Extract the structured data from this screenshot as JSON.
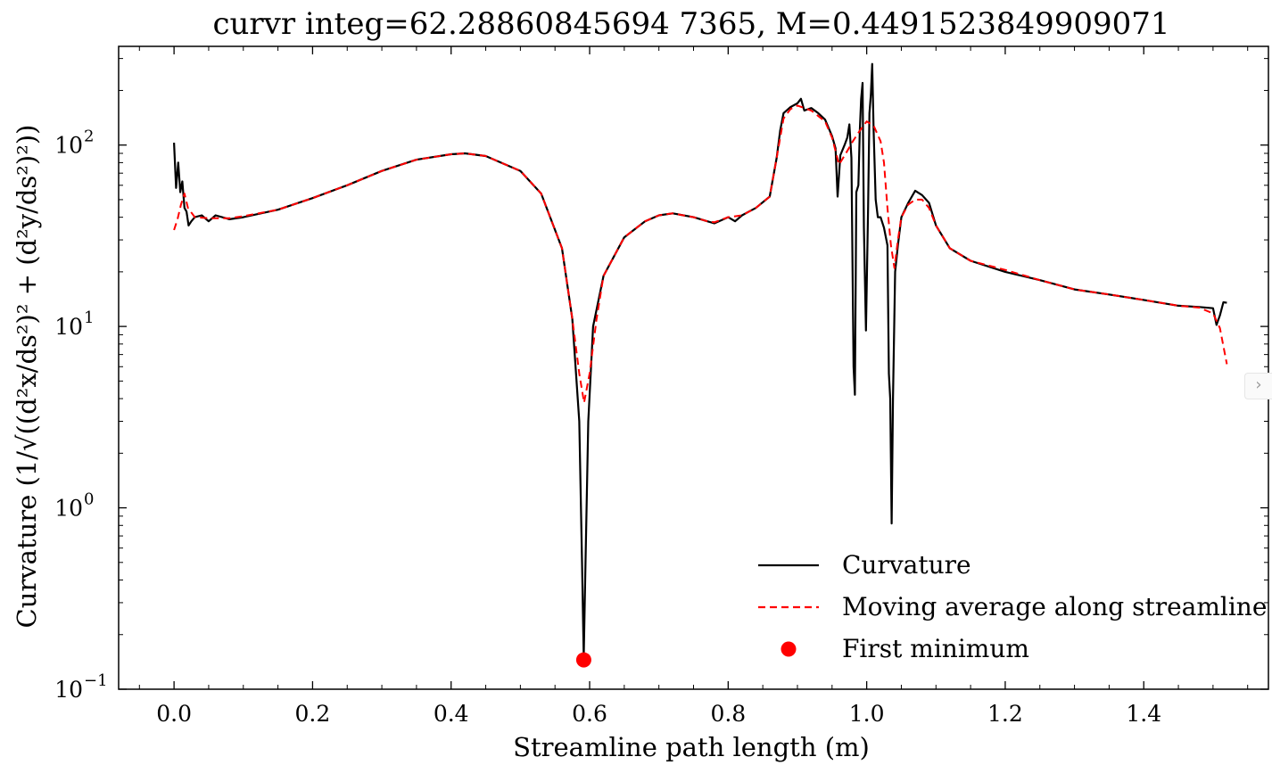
{
  "chart_data": {
    "type": "line",
    "title": "curvr integ=62.28860845694 7365, M=0.4491523849909071",
    "xlabel": "Streamline path length (m)",
    "ylabel": "Curvature (1/√((d²x/ds²)² + (d²y/ds²)²))",
    "yscale": "log",
    "xlim": [
      -0.08,
      1.58
    ],
    "ylim": [
      0.1,
      350
    ],
    "x_ticks": [
      0.0,
      0.2,
      0.4,
      0.6,
      0.8,
      1.0,
      1.2,
      1.4
    ],
    "x_tick_labels": [
      "0.0",
      "0.2",
      "0.4",
      "0.6",
      "0.8",
      "1.0",
      "1.2",
      "1.4"
    ],
    "y_ticks": [
      {
        "value": 0.1,
        "base": "10",
        "exp": "−1"
      },
      {
        "value": 1,
        "base": "10",
        "exp": "0"
      },
      {
        "value": 10,
        "base": "10",
        "exp": "1"
      },
      {
        "value": 100,
        "base": "10",
        "exp": "2"
      }
    ],
    "legend_position": "lower-right",
    "grid": false,
    "series": [
      {
        "name": "Curvature",
        "style": "solid",
        "color": "#000000",
        "points": [
          [
            0.0,
            103
          ],
          [
            0.003,
            58
          ],
          [
            0.006,
            80
          ],
          [
            0.009,
            55
          ],
          [
            0.012,
            63
          ],
          [
            0.015,
            45
          ],
          [
            0.018,
            43
          ],
          [
            0.021,
            36
          ],
          [
            0.025,
            38
          ],
          [
            0.03,
            40
          ],
          [
            0.04,
            41
          ],
          [
            0.05,
            38
          ],
          [
            0.06,
            41
          ],
          [
            0.08,
            39
          ],
          [
            0.1,
            40
          ],
          [
            0.15,
            44
          ],
          [
            0.2,
            51
          ],
          [
            0.25,
            60
          ],
          [
            0.3,
            72
          ],
          [
            0.35,
            83
          ],
          [
            0.4,
            89
          ],
          [
            0.42,
            90
          ],
          [
            0.45,
            87
          ],
          [
            0.5,
            72
          ],
          [
            0.53,
            54
          ],
          [
            0.56,
            27
          ],
          [
            0.575,
            11
          ],
          [
            0.585,
            3
          ],
          [
            0.589,
            0.5
          ],
          [
            0.5915,
            0.15
          ],
          [
            0.594,
            0.5
          ],
          [
            0.598,
            3
          ],
          [
            0.605,
            10
          ],
          [
            0.62,
            19
          ],
          [
            0.65,
            31
          ],
          [
            0.68,
            38
          ],
          [
            0.7,
            41
          ],
          [
            0.72,
            42
          ],
          [
            0.75,
            40
          ],
          [
            0.77,
            38
          ],
          [
            0.78,
            37
          ],
          [
            0.8,
            40
          ],
          [
            0.81,
            38
          ],
          [
            0.82,
            41
          ],
          [
            0.83,
            43
          ],
          [
            0.84,
            45
          ],
          [
            0.86,
            52
          ],
          [
            0.87,
            85
          ],
          [
            0.875,
            120
          ],
          [
            0.88,
            150
          ],
          [
            0.89,
            162
          ],
          [
            0.9,
            170
          ],
          [
            0.905,
            180
          ],
          [
            0.91,
            155
          ],
          [
            0.92,
            160
          ],
          [
            0.93,
            150
          ],
          [
            0.94,
            138
          ],
          [
            0.95,
            112
          ],
          [
            0.955,
            96
          ],
          [
            0.958,
            52
          ],
          [
            0.962,
            88
          ],
          [
            0.968,
            100
          ],
          [
            0.972,
            110
          ],
          [
            0.975,
            130
          ],
          [
            0.978,
            85
          ],
          [
            0.981,
            6
          ],
          [
            0.983,
            4.2
          ],
          [
            0.985,
            55
          ],
          [
            0.988,
            60
          ],
          [
            0.99,
            120
          ],
          [
            0.992,
            180
          ],
          [
            0.994,
            220
          ],
          [
            0.996,
            35
          ],
          [
            0.999,
            9.5
          ],
          [
            1.002,
            45
          ],
          [
            1.004,
            150
          ],
          [
            1.006,
            190
          ],
          [
            1.008,
            280
          ],
          [
            1.01,
            120
          ],
          [
            1.013,
            50
          ],
          [
            1.016,
            40
          ],
          [
            1.02,
            40
          ],
          [
            1.025,
            35
          ],
          [
            1.03,
            28
          ],
          [
            1.032,
            5.5
          ],
          [
            1.034,
            4
          ],
          [
            1.036,
            0.82
          ],
          [
            1.038,
            4
          ],
          [
            1.041,
            20
          ],
          [
            1.045,
            28
          ],
          [
            1.05,
            40
          ],
          [
            1.06,
            48
          ],
          [
            1.07,
            56
          ],
          [
            1.08,
            53
          ],
          [
            1.09,
            48
          ],
          [
            1.1,
            36
          ],
          [
            1.12,
            27
          ],
          [
            1.15,
            23
          ],
          [
            1.2,
            20
          ],
          [
            1.25,
            18
          ],
          [
            1.3,
            16
          ],
          [
            1.35,
            15
          ],
          [
            1.4,
            14
          ],
          [
            1.45,
            13
          ],
          [
            1.48,
            12.8
          ],
          [
            1.5,
            12.6
          ],
          [
            1.505,
            10.2
          ],
          [
            1.51,
            11.5
          ],
          [
            1.515,
            13.6
          ],
          [
            1.52,
            13.5
          ]
        ]
      },
      {
        "name": "Moving average along streamline",
        "style": "dashed",
        "color": "#ff0000",
        "points": [
          [
            0.0,
            34
          ],
          [
            0.005,
            39
          ],
          [
            0.01,
            47
          ],
          [
            0.015,
            54
          ],
          [
            0.02,
            45
          ],
          [
            0.03,
            40
          ],
          [
            0.05,
            39.5
          ],
          [
            0.08,
            39.5
          ],
          [
            0.1,
            40.5
          ],
          [
            0.15,
            44
          ],
          [
            0.2,
            51
          ],
          [
            0.25,
            60
          ],
          [
            0.3,
            72
          ],
          [
            0.35,
            83
          ],
          [
            0.4,
            89
          ],
          [
            0.42,
            90
          ],
          [
            0.45,
            87
          ],
          [
            0.5,
            72
          ],
          [
            0.53,
            54
          ],
          [
            0.56,
            27
          ],
          [
            0.575,
            11
          ],
          [
            0.585,
            5.5
          ],
          [
            0.592,
            3.8
          ],
          [
            0.6,
            5.5
          ],
          [
            0.61,
            11
          ],
          [
            0.62,
            19
          ],
          [
            0.65,
            31
          ],
          [
            0.68,
            38
          ],
          [
            0.7,
            41
          ],
          [
            0.72,
            42
          ],
          [
            0.75,
            40
          ],
          [
            0.77,
            38
          ],
          [
            0.78,
            37.5
          ],
          [
            0.8,
            40
          ],
          [
            0.82,
            41
          ],
          [
            0.84,
            45
          ],
          [
            0.86,
            52
          ],
          [
            0.87,
            85
          ],
          [
            0.88,
            140
          ],
          [
            0.89,
            158
          ],
          [
            0.9,
            165
          ],
          [
            0.92,
            155
          ],
          [
            0.94,
            135
          ],
          [
            0.95,
            110
          ],
          [
            0.96,
            78
          ],
          [
            0.97,
            90
          ],
          [
            0.98,
            105
          ],
          [
            0.99,
            120
          ],
          [
            1.0,
            135
          ],
          [
            1.01,
            128
          ],
          [
            1.02,
            105
          ],
          [
            1.025,
            80
          ],
          [
            1.03,
            45
          ],
          [
            1.035,
            28
          ],
          [
            1.04,
            21
          ],
          [
            1.045,
            30
          ],
          [
            1.05,
            40
          ],
          [
            1.06,
            47
          ],
          [
            1.07,
            50
          ],
          [
            1.08,
            50
          ],
          [
            1.09,
            45
          ],
          [
            1.1,
            36
          ],
          [
            1.12,
            27
          ],
          [
            1.15,
            23
          ],
          [
            1.2,
            20.5
          ],
          [
            1.25,
            18
          ],
          [
            1.3,
            16
          ],
          [
            1.35,
            15
          ],
          [
            1.4,
            14
          ],
          [
            1.45,
            13
          ],
          [
            1.48,
            12.7
          ],
          [
            1.5,
            11.8
          ],
          [
            1.51,
            9.8
          ],
          [
            1.52,
            6.2
          ]
        ]
      }
    ],
    "markers": [
      {
        "name": "First minimum",
        "x": 0.5915,
        "y": 0.145,
        "color": "#ff0000"
      }
    ],
    "legend": [
      {
        "label": "Curvature",
        "kind": "line-solid",
        "color": "#000000"
      },
      {
        "label": "Moving average along streamline",
        "kind": "line-dashed",
        "color": "#ff0000"
      },
      {
        "label": "First minimum",
        "kind": "dot",
        "color": "#ff0000"
      }
    ]
  }
}
